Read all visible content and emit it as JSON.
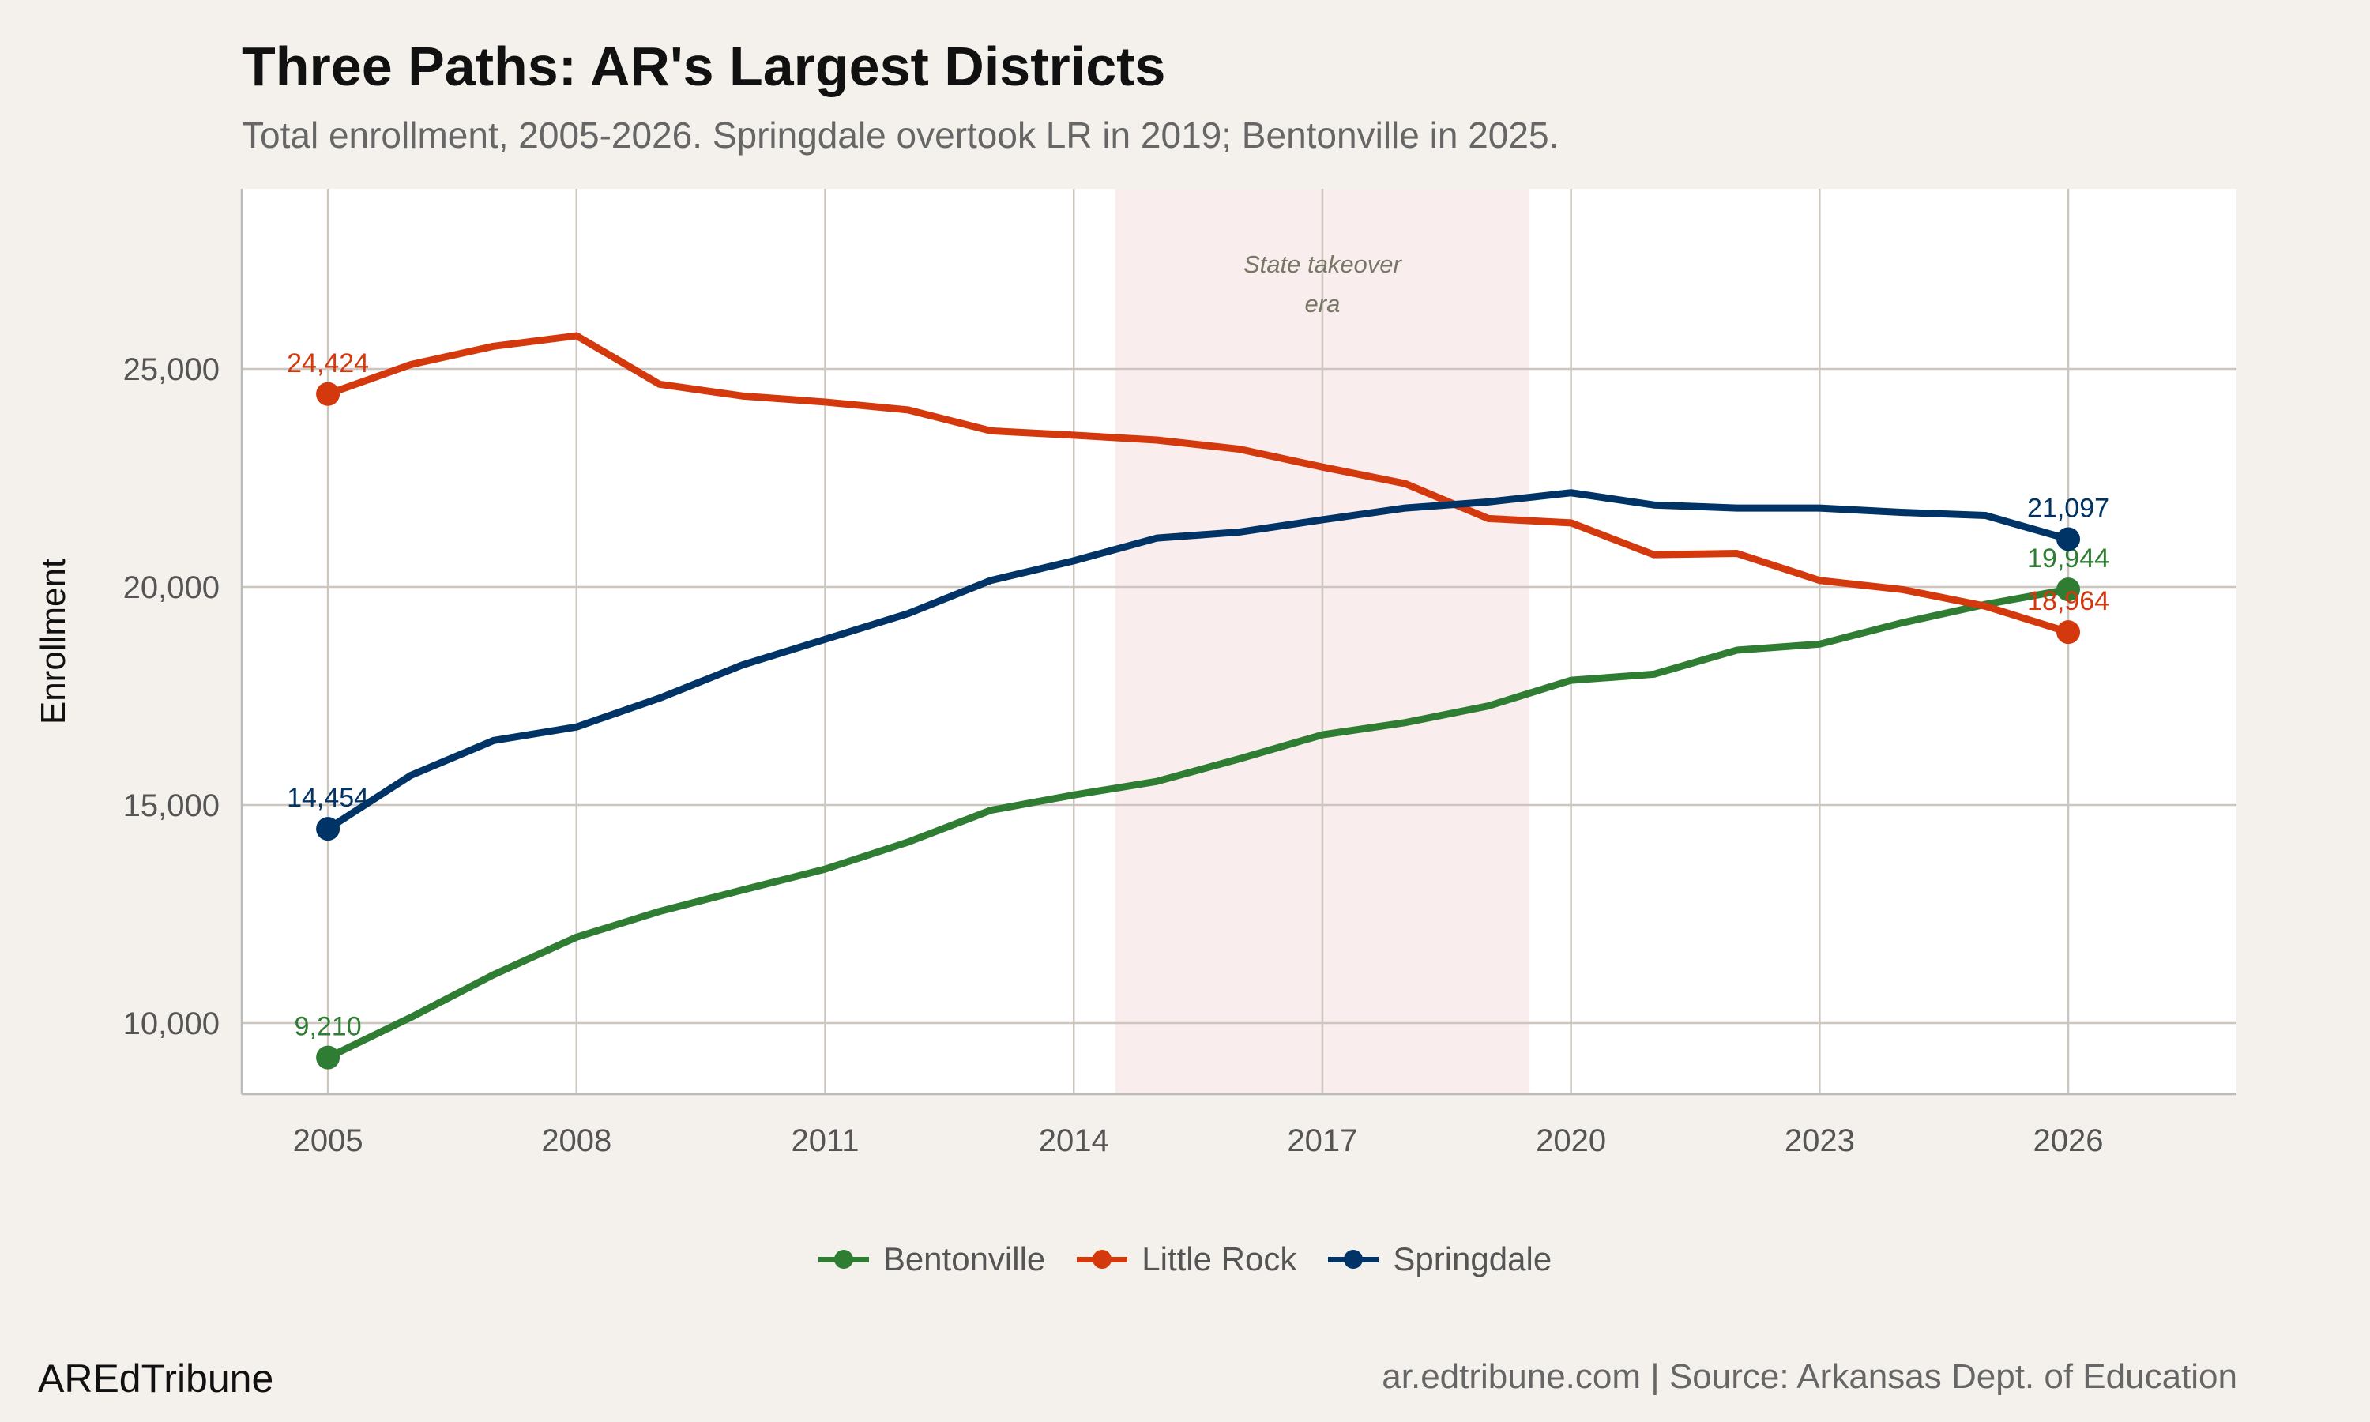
{
  "header": {
    "title": "Three Paths: AR's Largest Districts",
    "subtitle": "Total enrollment, 2005-2026. Springdale overtook LR in 2019; Bentonville in 2025."
  },
  "footer": {
    "brand": "AREdTribune",
    "source": "ar.edtribune.com | Source: Arkansas Dept. of Education"
  },
  "chart_data": {
    "type": "line",
    "title": "Three Paths: AR's Largest Districts",
    "xlabel": "",
    "ylabel": "Enrollment",
    "xlim": [
      2004,
      2028
    ],
    "ylim": [
      8400,
      29100
    ],
    "x_ticks": [
      2005,
      2008,
      2011,
      2014,
      2017,
      2020,
      2023,
      2026
    ],
    "y_ticks": [
      10000,
      15000,
      20000,
      25000
    ],
    "y_tick_labels": [
      "10,000",
      "15,000",
      "20,000",
      "25,000"
    ],
    "grid": true,
    "legend_position": "bottom",
    "annotation": {
      "text_line1": "State takeover",
      "text_line2": "era",
      "x_start": 2014.5,
      "x_end": 2019.5,
      "fill": "#f9eded"
    },
    "x": [
      2005,
      2006,
      2007,
      2008,
      2009,
      2010,
      2011,
      2012,
      2013,
      2014,
      2015,
      2016,
      2017,
      2018,
      2019,
      2020,
      2021,
      2022,
      2023,
      2024,
      2025,
      2026
    ],
    "series": [
      {
        "name": "Bentonville",
        "color": "#2e7d32",
        "values": [
          9210,
          10130,
          11110,
          11970,
          12560,
          13050,
          13530,
          14150,
          14880,
          15230,
          15540,
          16060,
          16610,
          16890,
          17270,
          17860,
          18000,
          18550,
          18690,
          19180,
          19600,
          19944
        ],
        "start_label": "9,210",
        "end_label": "19,944"
      },
      {
        "name": "Little Rock",
        "color": "#d4380d",
        "values": [
          24424,
          25100,
          25520,
          25760,
          24650,
          24380,
          24240,
          24060,
          23580,
          23480,
          23370,
          23160,
          22750,
          22370,
          21570,
          21470,
          20740,
          20770,
          20150,
          19940,
          19560,
          18964
        ],
        "start_label": "24,424",
        "end_label": "18,964"
      },
      {
        "name": "Springdale",
        "color": "#003366",
        "values": [
          14454,
          15680,
          16480,
          16790,
          17450,
          18210,
          18800,
          19390,
          20150,
          20600,
          21120,
          21260,
          21540,
          21810,
          21950,
          22160,
          21880,
          21810,
          21810,
          21710,
          21640,
          21097
        ],
        "start_label": "14,454",
        "end_label": "21,097"
      }
    ]
  }
}
